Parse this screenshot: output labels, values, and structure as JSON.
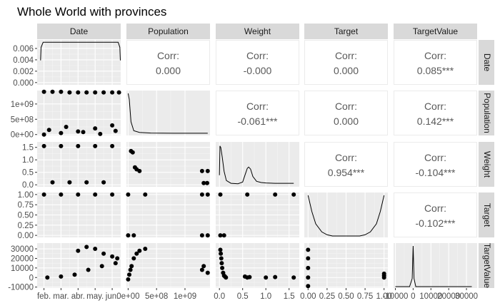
{
  "chart_data": {
    "type": "scatter-matrix",
    "title": "Whole World with provinces",
    "variables": [
      "Date",
      "Population",
      "Weight",
      "Target",
      "TargetValue"
    ],
    "corr_label": "Corr:",
    "correlations": [
      {
        "row": 0,
        "col": 1,
        "value": "0.000"
      },
      {
        "row": 0,
        "col": 2,
        "value": "-0.000"
      },
      {
        "row": 0,
        "col": 3,
        "value": "0.000"
      },
      {
        "row": 0,
        "col": 4,
        "value": "0.085***"
      },
      {
        "row": 1,
        "col": 2,
        "value": "-0.061***"
      },
      {
        "row": 1,
        "col": 3,
        "value": "0.000"
      },
      {
        "row": 1,
        "col": 4,
        "value": "0.142***"
      },
      {
        "row": 2,
        "col": 3,
        "value": "0.954***"
      },
      {
        "row": 2,
        "col": 4,
        "value": "-0.104***"
      },
      {
        "row": 3,
        "col": 4,
        "value": "-0.102***"
      }
    ],
    "axes": {
      "Date": {
        "tick_labels": [
          "feb.",
          "mar.",
          "abr.",
          "may.",
          "jun."
        ],
        "tick_values": [
          1,
          2,
          3,
          4,
          5
        ],
        "range": [
          0.6,
          5.5
        ]
      },
      "Population": {
        "tick_labels": [
          "0e+00",
          "5e+08",
          "1e+09"
        ],
        "tick_values": [
          0,
          500000000,
          1000000000
        ],
        "range": [
          -30000000,
          1440000000
        ]
      },
      "Weight": {
        "tick_labels": [
          "0.0",
          "0.5",
          "1.0",
          "1.5"
        ],
        "tick_values": [
          0,
          0.5,
          1.0,
          1.5
        ],
        "range": [
          -0.08,
          1.72
        ]
      },
      "Target": {
        "tick_labels": [
          "0.00",
          "0.25",
          "0.50",
          "0.75",
          "1.00"
        ],
        "tick_values": [
          0,
          0.25,
          0.5,
          0.75,
          1.0
        ],
        "range": [
          -0.05,
          1.05
        ]
      },
      "TargetValue": {
        "tick_labels": [
          "-10000",
          "0",
          "10000",
          "20000",
          "30000"
        ],
        "tick_values": [
          -10000,
          0,
          10000,
          20000,
          30000
        ],
        "range": [
          -11000,
          36000
        ]
      },
      "Date_density": {
        "tick_labels": [
          "0.000",
          "0.002",
          "0.004",
          "0.006"
        ],
        "tick_values": [
          0,
          0.002,
          0.004,
          0.006
        ],
        "range": [
          -0.0004,
          0.0075
        ]
      }
    },
    "diagonal_densities": {
      "Date": [
        [
          0.8,
          0.0039
        ],
        [
          0.83,
          0.0062
        ],
        [
          0.95,
          0.0071
        ],
        [
          1.5,
          0.0071
        ],
        [
          3,
          0.0071
        ],
        [
          4.5,
          0.0071
        ],
        [
          5.35,
          0.0071
        ],
        [
          5.45,
          0.0062
        ],
        [
          5.48,
          0.0039
        ]
      ],
      "Population": [
        [
          0,
          1.0
        ],
        [
          20000000,
          0.85
        ],
        [
          50000000,
          0.3
        ],
        [
          100000000,
          0.08
        ],
        [
          200000000,
          0.04
        ],
        [
          400000000,
          0.025
        ],
        [
          800000000,
          0.02
        ],
        [
          1400000000,
          0.02
        ]
      ],
      "Weight": [
        [
          0.0,
          0.25
        ],
        [
          0.01,
          0.97
        ],
        [
          0.03,
          0.93
        ],
        [
          0.06,
          0.7
        ],
        [
          0.1,
          0.35
        ],
        [
          0.15,
          0.12
        ],
        [
          0.25,
          0.05
        ],
        [
          0.4,
          0.04
        ],
        [
          0.5,
          0.08
        ],
        [
          0.55,
          0.25
        ],
        [
          0.6,
          0.42
        ],
        [
          0.63,
          0.45
        ],
        [
          0.67,
          0.4
        ],
        [
          0.72,
          0.22
        ],
        [
          0.8,
          0.1
        ],
        [
          0.9,
          0.07
        ],
        [
          1.0,
          0.06
        ],
        [
          1.2,
          0.05
        ],
        [
          1.4,
          0.05
        ],
        [
          1.6,
          0.05
        ]
      ],
      "Target": [
        [
          0.0,
          1.0
        ],
        [
          0.05,
          0.6
        ],
        [
          0.1,
          0.3
        ],
        [
          0.18,
          0.1
        ],
        [
          0.25,
          0.03
        ],
        [
          0.32,
          0.0
        ],
        [
          0.68,
          0.0
        ],
        [
          0.75,
          0.03
        ],
        [
          0.82,
          0.1
        ],
        [
          0.9,
          0.3
        ],
        [
          0.95,
          0.6
        ],
        [
          1.0,
          1.0
        ]
      ],
      "TargetValue": [
        [
          -10000,
          0.0
        ],
        [
          -2000,
          0.0
        ],
        [
          -500,
          0.2
        ],
        [
          0,
          1.0
        ],
        [
          500,
          0.2
        ],
        [
          1500,
          0.0
        ],
        [
          33000,
          0.0
        ]
      ]
    },
    "scatter_points": {
      "1,0": {
        "x": [
          1,
          1.5,
          2,
          2.5,
          3,
          3.5,
          4,
          4.5,
          5,
          5.4,
          1,
          2,
          3,
          4,
          5,
          1.3,
          2.3,
          3.3,
          4.3,
          5.2
        ],
        "y": [
          1400000000,
          1400000000,
          1400000000,
          1380000000,
          1380000000,
          1380000000,
          1380000000,
          1380000000,
          1380000000,
          1380000000,
          0,
          50000000,
          100000000,
          200000000,
          300000000,
          150000000,
          250000000,
          80000000,
          20000000,
          120000000
        ]
      },
      "1,2": {
        "x": [
          0.02,
          0.05,
          0.08,
          0.1,
          0.12,
          0.15,
          1.4,
          1.6
        ],
        "y": [
          10000000,
          50000000,
          100000000,
          200000000,
          20000000,
          300000000,
          220000000,
          220000000
        ]
      },
      "1,3": {
        "x": [
          0,
          0,
          0,
          0,
          0,
          1,
          1,
          1
        ],
        "y": [
          0,
          100000000,
          330000000,
          1300000000,
          1400000000,
          0,
          100000000,
          330000000
        ]
      },
      "1,4": {
        "x": [
          0,
          200,
          500,
          1000,
          5000
        ],
        "y": [
          0,
          100000000,
          200000000,
          50000000,
          10000000
        ]
      },
      "2,0": {
        "x": [
          1,
          2,
          3,
          4,
          5,
          1.5,
          2.5,
          3.5,
          4.5
        ],
        "y": [
          1.55,
          1.55,
          1.55,
          1.55,
          1.55,
          0.1,
          0.1,
          0.1,
          0.1
        ]
      },
      "2,1": {
        "x": [
          50000000,
          80000000,
          120000000,
          150000000,
          200000000,
          1300000000,
          1400000000,
          1330000000,
          1390000000
        ],
        "y": [
          1.35,
          1.3,
          0.7,
          0.62,
          0.55,
          0.55,
          0.55,
          0.07,
          0.07
        ]
      },
      "3,0": {
        "x": [
          1,
          2,
          3,
          4,
          5
        ],
        "y": [
          1,
          1,
          1,
          1,
          1
        ]
      },
      "3,1": {
        "x": [
          0,
          300000000,
          1300000000,
          1400000000,
          0,
          100000000,
          1300000000,
          1400000000
        ],
        "y": [
          1,
          1,
          1,
          1,
          0,
          0,
          0,
          0
        ]
      },
      "3,2": {
        "x": [
          0.02,
          0.6,
          1.2,
          1.6,
          0.02,
          0.1
        ],
        "y": [
          1,
          1,
          1,
          1,
          0,
          0
        ]
      },
      "4,0": {
        "x": [
          3,
          3.5,
          4,
          4.5,
          5,
          5.3,
          1.2,
          2,
          2.8,
          3.6,
          4.4,
          5.2
        ],
        "y": [
          28000,
          32000,
          30000,
          25000,
          22000,
          20000,
          0,
          1000,
          3000,
          8000,
          12000,
          15000
        ]
      },
      "4,1": {
        "x": [
          0,
          20000000,
          40000000,
          60000000,
          100000000,
          150000000,
          200000000,
          300000000,
          1300000000,
          1330000000,
          1400000000
        ],
        "y": [
          -2000,
          3000,
          8000,
          12000,
          20000,
          25000,
          28000,
          30000,
          8000,
          12000,
          5000
        ]
      },
      "4,2": {
        "x": [
          0.02,
          0.03,
          0.04,
          0.05,
          0.06,
          0.08,
          0.1,
          0.12,
          0.14,
          0.55,
          0.6,
          0.65,
          1.0,
          1.2,
          1.6
        ],
        "y": [
          29000,
          25000,
          20000,
          15000,
          10000,
          5000,
          2000,
          1000,
          0,
          1000,
          0,
          500,
          0,
          500,
          0
        ]
      },
      "4,3": {
        "x": [
          0,
          0,
          0,
          0,
          0,
          1,
          1,
          1
        ],
        "y": [
          -9000,
          0,
          10000,
          20000,
          29000,
          4000,
          2000,
          0
        ]
      }
    },
    "legend": "none",
    "grid": true
  }
}
